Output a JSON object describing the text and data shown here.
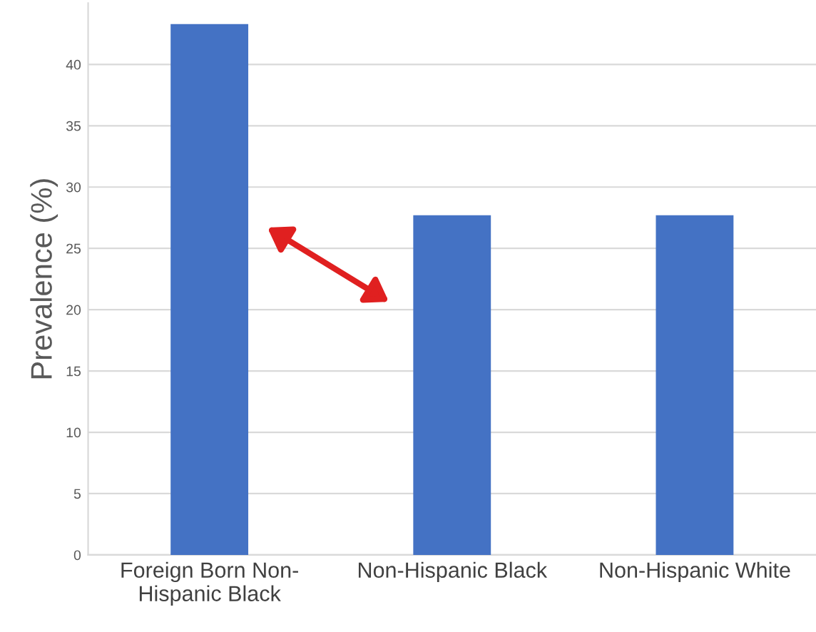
{
  "chart_data": {
    "type": "bar",
    "ylabel": "Prevalence (%)",
    "categories": [
      "Foreign Born Non-\nHispanic Black",
      "Non-Hispanic Black",
      "Non-Hispanic White"
    ],
    "values": [
      43.3,
      27.7,
      27.7
    ],
    "color": "#4472c4",
    "ylim": [
      0,
      45
    ],
    "yticks": [
      0,
      5,
      10,
      15,
      20,
      25,
      30,
      35,
      40
    ],
    "grid": "y"
  }
}
